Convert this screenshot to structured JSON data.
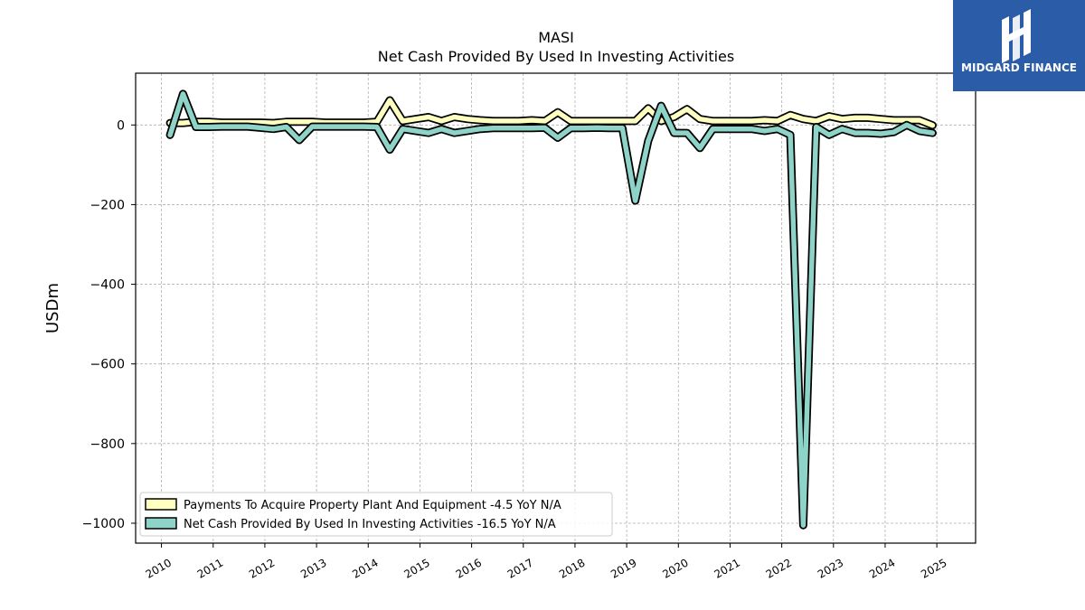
{
  "chart_data": {
    "type": "line",
    "title": "MASI",
    "subtitle": "Net Cash Provided By Used In Investing Activities",
    "ylabel": "USDm",
    "xlabel": "",
    "ylim": [
      -1050,
      130
    ],
    "xlim": [
      2009.5,
      2025.75
    ],
    "yticks": [
      0,
      -200,
      -400,
      -600,
      -800,
      -1000
    ],
    "ytick_labels": [
      "0",
      "−200",
      "−400",
      "−600",
      "−800",
      "−1000"
    ],
    "xticks": [
      2010,
      2011,
      2012,
      2013,
      2014,
      2015,
      2016,
      2017,
      2018,
      2019,
      2020,
      2021,
      2022,
      2023,
      2024,
      2025
    ],
    "xtick_labels": [
      "2010",
      "2011",
      "2012",
      "2013",
      "2014",
      "2015",
      "2016",
      "2017",
      "2018",
      "2019",
      "2020",
      "2021",
      "2022",
      "2023",
      "2024",
      "2025"
    ],
    "grid": true,
    "legend_position": "lower-left",
    "series": [
      {
        "name": "Payments To Acquire Property Plant And Equipment  -4.5 YoY N/A",
        "color": "#ffffbf",
        "x": [
          "2010-03",
          "2010-06",
          "2010-09",
          "2010-12",
          "2011-03",
          "2011-06",
          "2011-09",
          "2011-12",
          "2012-03",
          "2012-06",
          "2012-09",
          "2012-12",
          "2013-03",
          "2013-06",
          "2013-09",
          "2013-12",
          "2014-03",
          "2014-06",
          "2014-09",
          "2014-12",
          "2015-03",
          "2015-06",
          "2015-09",
          "2015-12",
          "2016-03",
          "2016-06",
          "2016-09",
          "2016-12",
          "2017-03",
          "2017-06",
          "2017-09",
          "2017-12",
          "2018-03",
          "2018-06",
          "2018-09",
          "2018-12",
          "2019-03",
          "2019-06",
          "2019-09",
          "2019-12",
          "2020-03",
          "2020-06",
          "2020-09",
          "2020-12",
          "2021-03",
          "2021-06",
          "2021-09",
          "2021-12",
          "2022-03",
          "2022-06",
          "2022-09",
          "2022-12",
          "2023-03",
          "2023-06",
          "2023-09",
          "2023-12",
          "2024-03",
          "2024-06",
          "2024-09",
          "2024-12"
        ],
        "values": [
          5,
          5,
          8,
          8,
          6,
          6,
          6,
          6,
          5,
          8,
          8,
          8,
          6,
          6,
          6,
          6,
          8,
          62,
          10,
          15,
          20,
          10,
          20,
          15,
          12,
          10,
          10,
          10,
          12,
          10,
          32,
          10,
          10,
          10,
          10,
          10,
          10,
          42,
          10,
          20,
          40,
          15,
          10,
          10,
          10,
          10,
          12,
          10,
          25,
          15,
          10,
          22,
          15,
          18,
          18,
          15,
          12,
          12,
          12,
          -1
        ]
      },
      {
        "name": "Net Cash Provided By Used In Investing Activities  -16.5 YoY N/A",
        "color": "#8dd3c7",
        "x": [
          "2010-03",
          "2010-06",
          "2010-09",
          "2010-12",
          "2011-03",
          "2011-06",
          "2011-09",
          "2011-12",
          "2012-03",
          "2012-06",
          "2012-09",
          "2012-12",
          "2013-03",
          "2013-06",
          "2013-09",
          "2013-12",
          "2014-03",
          "2014-06",
          "2014-09",
          "2014-12",
          "2015-03",
          "2015-06",
          "2015-09",
          "2015-12",
          "2016-03",
          "2016-06",
          "2016-09",
          "2016-12",
          "2017-03",
          "2017-06",
          "2017-09",
          "2017-12",
          "2018-03",
          "2018-06",
          "2018-09",
          "2018-12",
          "2019-03",
          "2019-06",
          "2019-09",
          "2019-12",
          "2020-03",
          "2020-06",
          "2020-09",
          "2020-12",
          "2021-03",
          "2021-06",
          "2021-09",
          "2021-12",
          "2022-03",
          "2022-06",
          "2022-09",
          "2022-12",
          "2023-03",
          "2023-06",
          "2023-09",
          "2023-12",
          "2024-03",
          "2024-06",
          "2024-09",
          "2024-12"
        ],
        "values": [
          -25,
          78,
          -5,
          -5,
          -4,
          -4,
          -4,
          -7,
          -10,
          -5,
          -38,
          -4,
          -4,
          -4,
          -4,
          -4,
          -5,
          -62,
          -10,
          -15,
          -20,
          -10,
          -20,
          -15,
          -10,
          -8,
          -8,
          -8,
          -8,
          -7,
          -32,
          -8,
          -8,
          -7,
          -8,
          -8,
          -190,
          -40,
          48,
          -20,
          -20,
          -58,
          -10,
          -10,
          -10,
          -10,
          -15,
          -10,
          -25,
          -1005,
          -5,
          -25,
          -10,
          -20,
          -20,
          -22,
          -18,
          0,
          -15,
          -20
        ]
      }
    ]
  },
  "logo": {
    "text": "MIDGARD FINANCE",
    "background": "#2a5ca8"
  }
}
